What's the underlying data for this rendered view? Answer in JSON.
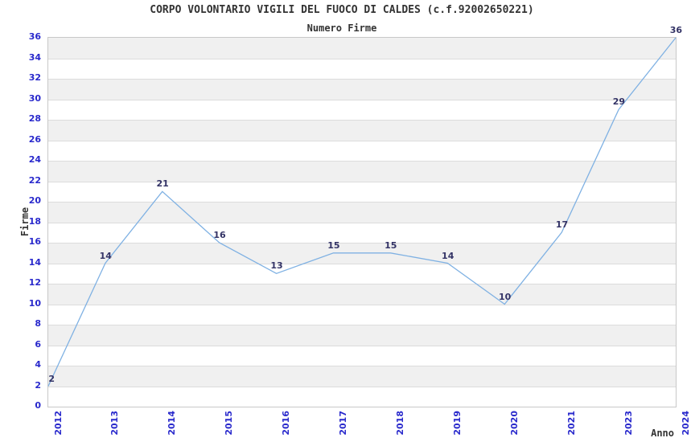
{
  "header": {
    "title": "CORPO VOLONTARIO VIGILI DEL FUOCO DI CALDES (c.f.92002650221)",
    "subtitle": "Numero Firme"
  },
  "chart_data": {
    "type": "line",
    "title": "CORPO VOLONTARIO VIGILI DEL FUOCO DI CALDES (c.f.92002650221)",
    "subtitle": "Numero Firme",
    "xlabel": "Anno",
    "ylabel": "Firme",
    "categories": [
      "2012",
      "2013",
      "2014",
      "2015",
      "2016",
      "2017",
      "2018",
      "2019",
      "2020",
      "2021",
      "2023",
      "2024"
    ],
    "values": [
      2,
      14,
      21,
      16,
      13,
      15,
      15,
      14,
      10,
      17,
      29,
      36
    ],
    "ylim": [
      0,
      36
    ],
    "ytick_step": 2,
    "grid": "horizontal",
    "legend": "none",
    "data_labels": true,
    "colors": {
      "line": "#7fb1e3",
      "data_label": "#333366",
      "tick_label": "#2929cc",
      "title_text": "#333333",
      "stripe": "#f0f0f0",
      "gridline": "#dcdcdc",
      "plot_border": "#c8c8c8"
    }
  }
}
